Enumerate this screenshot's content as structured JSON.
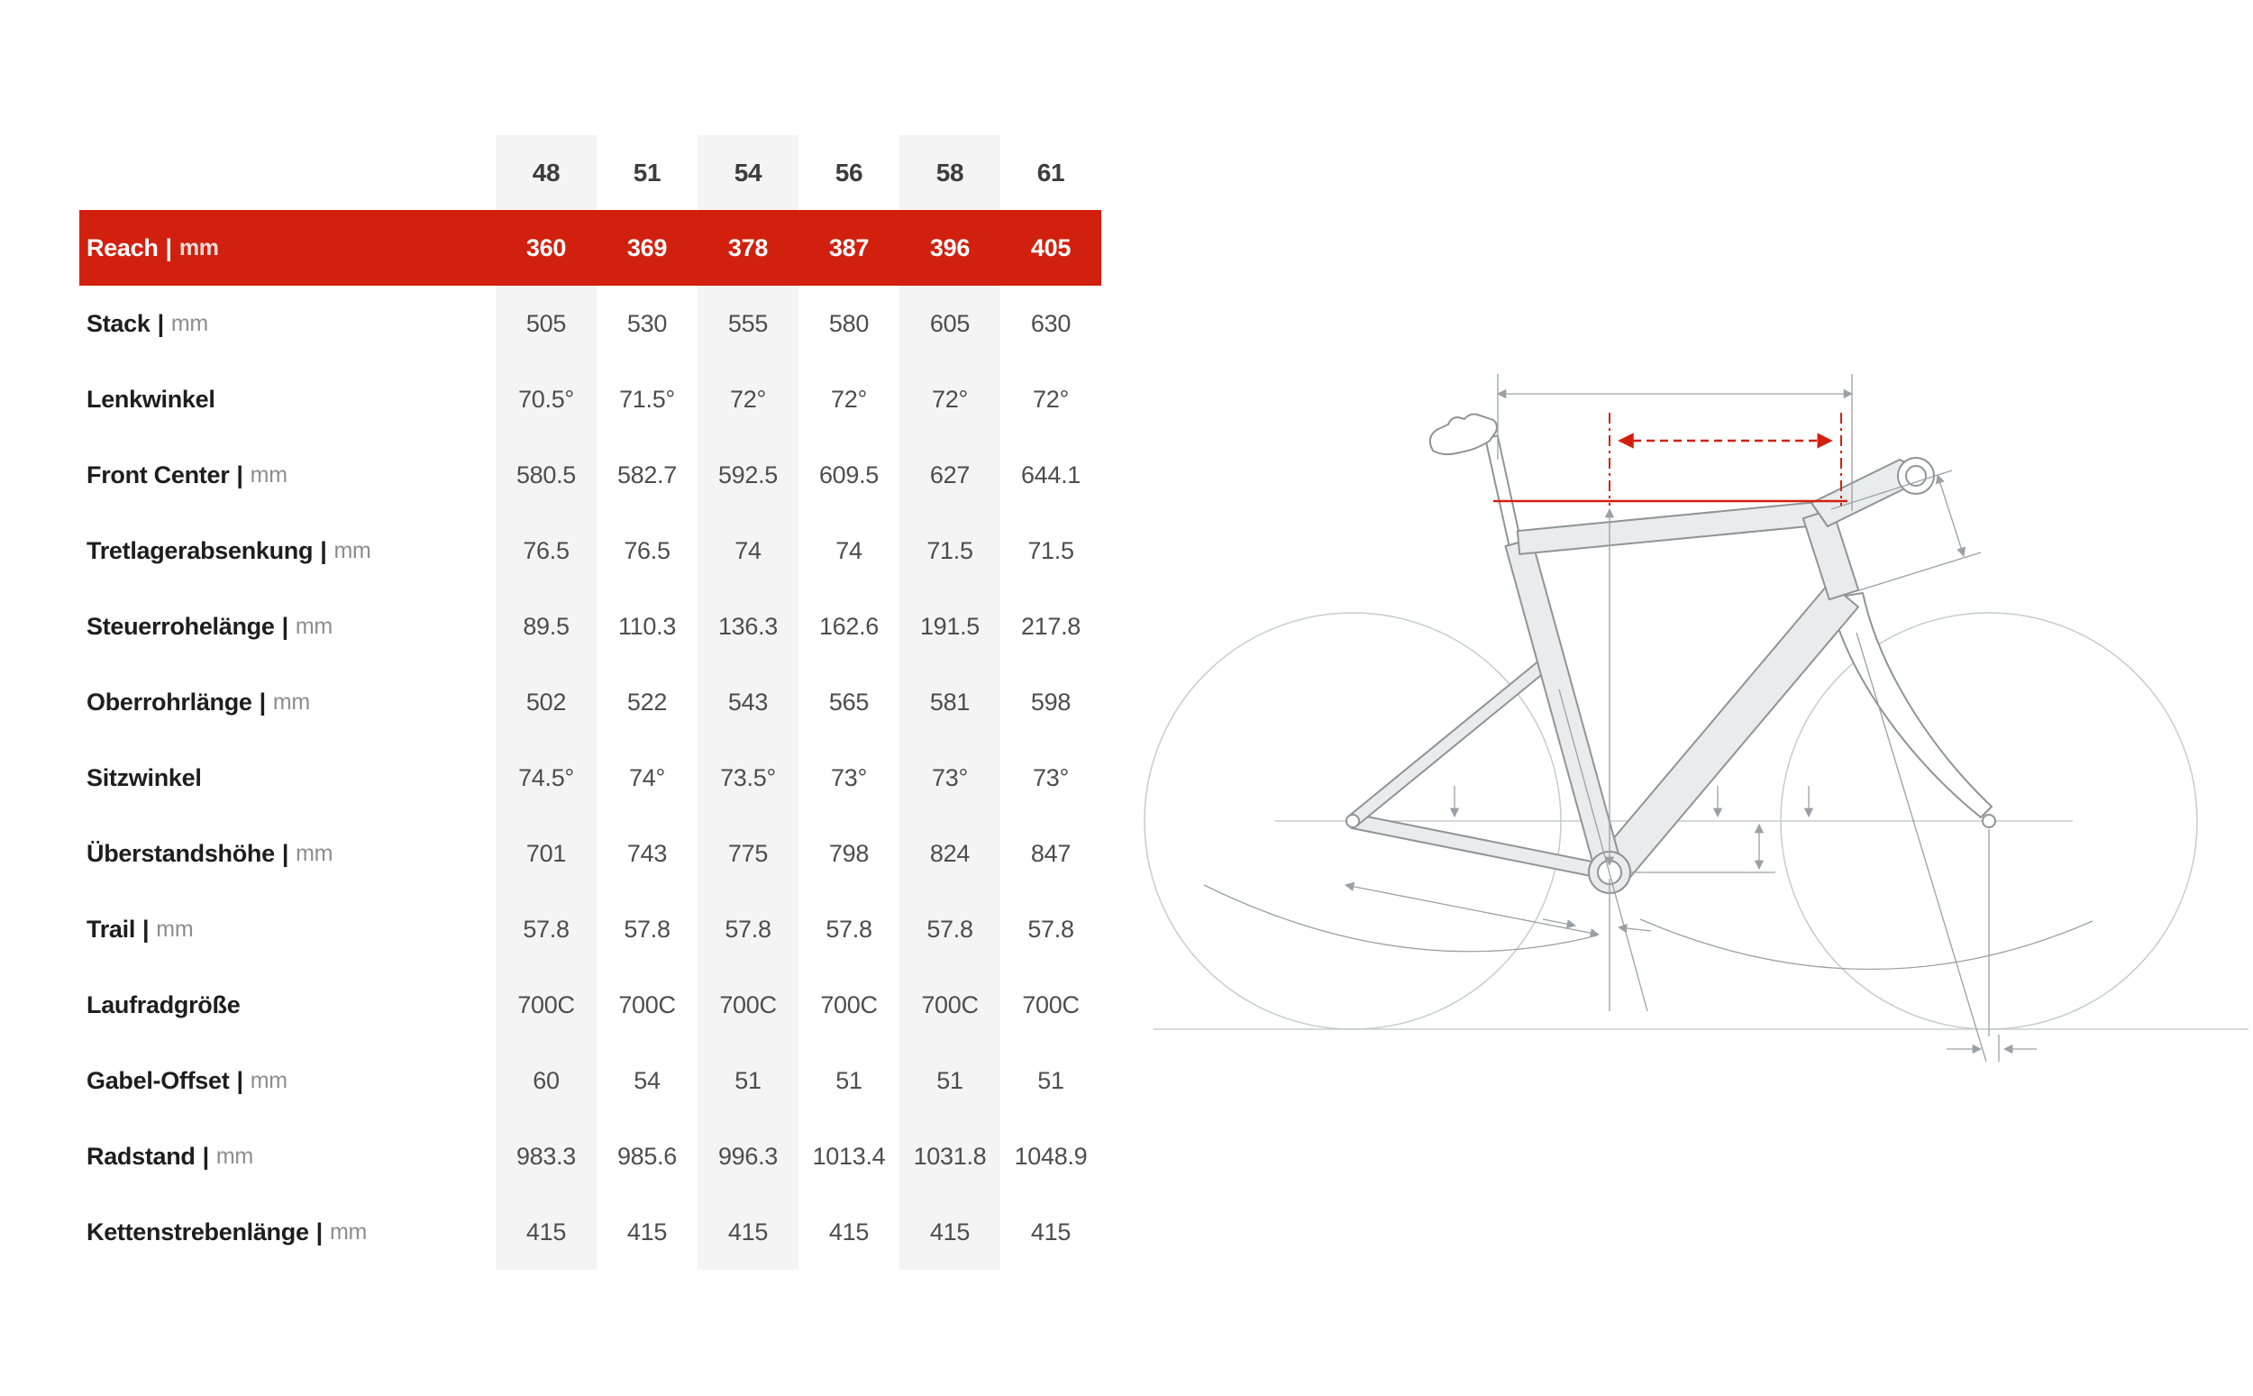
{
  "chart_data": {
    "type": "table",
    "pipe": "|",
    "columns": [
      "48",
      "51",
      "54",
      "56",
      "58",
      "61"
    ],
    "rows": [
      {
        "label": "Reach",
        "unit": "mm",
        "highlighted": true,
        "values": [
          "360",
          "369",
          "378",
          "387",
          "396",
          "405"
        ]
      },
      {
        "label": "Stack",
        "unit": "mm",
        "highlighted": false,
        "values": [
          "505",
          "530",
          "555",
          "580",
          "605",
          "630"
        ]
      },
      {
        "label": "Lenkwinkel",
        "unit": "",
        "highlighted": false,
        "values": [
          "70.5°",
          "71.5°",
          "72°",
          "72°",
          "72°",
          "72°"
        ]
      },
      {
        "label": "Front Center",
        "unit": "mm",
        "highlighted": false,
        "values": [
          "580.5",
          "582.7",
          "592.5",
          "609.5",
          "627",
          "644.1"
        ]
      },
      {
        "label": "Tretlagerabsenkung",
        "unit": "mm",
        "highlighted": false,
        "values": [
          "76.5",
          "76.5",
          "74",
          "74",
          "71.5",
          "71.5"
        ]
      },
      {
        "label": "Steuerrohelänge",
        "unit": "mm",
        "highlighted": false,
        "values": [
          "89.5",
          "110.3",
          "136.3",
          "162.6",
          "191.5",
          "217.8"
        ]
      },
      {
        "label": "Oberrohrlänge",
        "unit": "mm",
        "highlighted": false,
        "values": [
          "502",
          "522",
          "543",
          "565",
          "581",
          "598"
        ]
      },
      {
        "label": "Sitzwinkel",
        "unit": "",
        "highlighted": false,
        "values": [
          "74.5°",
          "74°",
          "73.5°",
          "73°",
          "73°",
          "73°"
        ]
      },
      {
        "label": "Überstandshöhe",
        "unit": "mm",
        "highlighted": false,
        "values": [
          "701",
          "743",
          "775",
          "798",
          "824",
          "847"
        ]
      },
      {
        "label": "Trail",
        "unit": "mm",
        "highlighted": false,
        "values": [
          "57.8",
          "57.8",
          "57.8",
          "57.8",
          "57.8",
          "57.8"
        ]
      },
      {
        "label": "Laufradgröße",
        "unit": "",
        "highlighted": false,
        "values": [
          "700C",
          "700C",
          "700C",
          "700C",
          "700C",
          "700C"
        ]
      },
      {
        "label": "Gabel-Offset",
        "unit": "mm",
        "highlighted": false,
        "values": [
          "60",
          "54",
          "51",
          "51",
          "51",
          "51"
        ]
      },
      {
        "label": "Radstand",
        "unit": "mm",
        "highlighted": false,
        "values": [
          "983.3",
          "985.6",
          "996.3",
          "1013.4",
          "1031.8",
          "1048.9"
        ]
      },
      {
        "label": "Kettenstrebenlänge",
        "unit": "mm",
        "highlighted": false,
        "values": [
          "415",
          "415",
          "415",
          "415",
          "415",
          "415"
        ]
      }
    ],
    "striped_column_indexes": [
      0,
      2,
      4
    ],
    "legend_position": "none",
    "title": ""
  },
  "diagram": {
    "highlighted_dimension": "Reach"
  },
  "colors": {
    "accent_red": "#d2200e",
    "stripe_gray": "#f4f4f5",
    "frame_fill": "#e9ebec",
    "frame_outline": "#8e9498",
    "dimension_line": "#9aa0a5",
    "wheel_line": "#c8cbcd",
    "label_text": "#1e1e1e",
    "value_text": "#4d4d4d",
    "unit_text": "#8d8d8d",
    "header_text": "#3d3d3d",
    "red_row_text": "#ffffff"
  }
}
